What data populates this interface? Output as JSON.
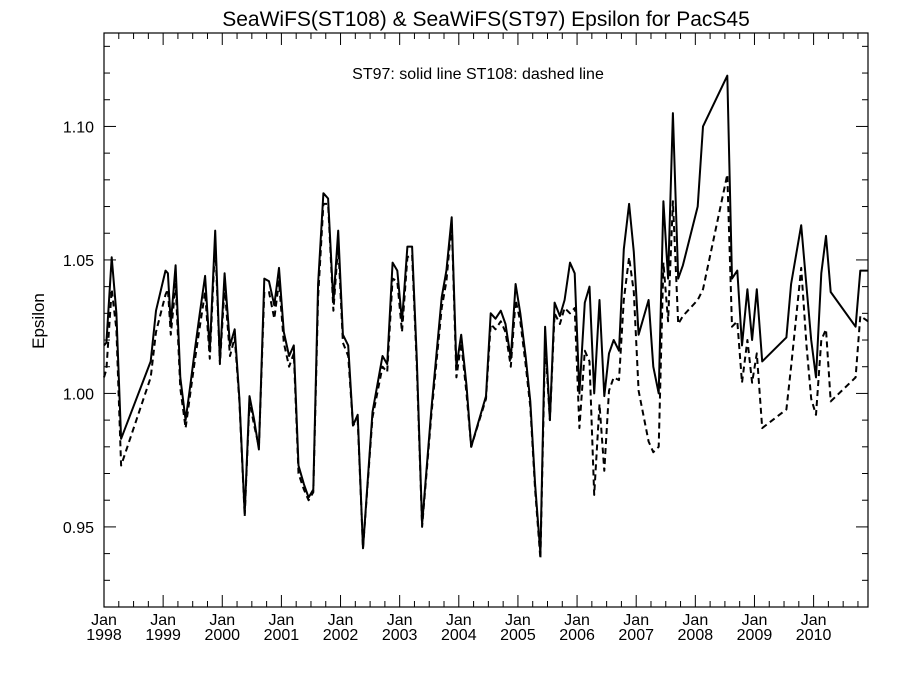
{
  "chart_data": {
    "type": "line",
    "title": "SeaWiFS(ST108) & SeaWiFS(ST97)  Epsilon for PacS45",
    "annotation": "ST97: solid line   ST108: dashed line",
    "xlabel": "",
    "ylabel": "Epsilon",
    "xlim": [
      1998.0,
      2010.92
    ],
    "ylim": [
      0.92,
      1.135
    ],
    "yticks": [
      {
        "value": 0.95,
        "label": "0.95"
      },
      {
        "value": 1.0,
        "label": "1.00"
      },
      {
        "value": 1.05,
        "label": "1.05"
      },
      {
        "value": 1.1,
        "label": "1.10"
      }
    ],
    "xticks": [
      {
        "value": 1998,
        "month": "Jan",
        "year": "1998"
      },
      {
        "value": 1999,
        "month": "Jan",
        "year": "1999"
      },
      {
        "value": 2000,
        "month": "Jan",
        "year": "2000"
      },
      {
        "value": 2001,
        "month": "Jan",
        "year": "2001"
      },
      {
        "value": 2002,
        "month": "Jan",
        "year": "2002"
      },
      {
        "value": 2003,
        "month": "Jan",
        "year": "2003"
      },
      {
        "value": 2004,
        "month": "Jan",
        "year": "2004"
      },
      {
        "value": 2005,
        "month": "Jan",
        "year": "2005"
      },
      {
        "value": 2006,
        "month": "Jan",
        "year": "2006"
      },
      {
        "value": 2007,
        "month": "Jan",
        "year": "2007"
      },
      {
        "value": 2008,
        "month": "Jan",
        "year": "2008"
      },
      {
        "value": 2009,
        "month": "Jan",
        "year": "2009"
      },
      {
        "value": 2010,
        "month": "Jan",
        "year": "2010"
      }
    ],
    "series": [
      {
        "name": "ST97",
        "style": "solid",
        "color": "#000000",
        "points": [
          [
            1998.0,
            1.018
          ],
          [
            1998.04,
            1.019
          ],
          [
            1998.13,
            1.051
          ],
          [
            1998.21,
            1.03
          ],
          [
            1998.29,
            0.983
          ],
          [
            1998.79,
            1.012
          ],
          [
            1998.88,
            1.031
          ],
          [
            1999.04,
            1.046
          ],
          [
            1999.08,
            1.045
          ],
          [
            1999.13,
            1.026
          ],
          [
            1999.21,
            1.048
          ],
          [
            1999.29,
            1.006
          ],
          [
            1999.38,
            0.99
          ],
          [
            1999.46,
            1.003
          ],
          [
            1999.54,
            1.017
          ],
          [
            1999.62,
            1.03
          ],
          [
            1999.71,
            1.044
          ],
          [
            1999.79,
            1.016
          ],
          [
            1999.88,
            1.061
          ],
          [
            1999.96,
            1.012
          ],
          [
            2000.04,
            1.045
          ],
          [
            2000.13,
            1.018
          ],
          [
            2000.21,
            1.024
          ],
          [
            2000.29,
            0.998
          ],
          [
            2000.38,
            0.955
          ],
          [
            2000.46,
            0.999
          ],
          [
            2000.54,
            0.99
          ],
          [
            2000.62,
            0.979
          ],
          [
            2000.71,
            1.043
          ],
          [
            2000.79,
            1.042
          ],
          [
            2000.88,
            1.033
          ],
          [
            2000.96,
            1.047
          ],
          [
            2001.04,
            1.023
          ],
          [
            2001.13,
            1.014
          ],
          [
            2001.21,
            1.018
          ],
          [
            2001.29,
            0.973
          ],
          [
            2001.38,
            0.966
          ],
          [
            2001.46,
            0.961
          ],
          [
            2001.54,
            0.964
          ],
          [
            2001.62,
            1.041
          ],
          [
            2001.71,
            1.075
          ],
          [
            2001.79,
            1.073
          ],
          [
            2001.88,
            1.034
          ],
          [
            2001.96,
            1.061
          ],
          [
            2002.04,
            1.022
          ],
          [
            2002.13,
            1.018
          ],
          [
            2002.21,
            0.988
          ],
          [
            2002.29,
            0.992
          ],
          [
            2002.38,
            0.942
          ],
          [
            2002.54,
            0.993
          ],
          [
            2002.71,
            1.014
          ],
          [
            2002.79,
            1.011
          ],
          [
            2002.88,
            1.049
          ],
          [
            2002.96,
            1.046
          ],
          [
            2003.04,
            1.027
          ],
          [
            2003.13,
            1.055
          ],
          [
            2003.21,
            1.055
          ],
          [
            2003.29,
            1.013
          ],
          [
            2003.38,
            0.951
          ],
          [
            2003.54,
            0.995
          ],
          [
            2003.71,
            1.036
          ],
          [
            2003.79,
            1.046
          ],
          [
            2003.88,
            1.066
          ],
          [
            2003.96,
            1.01
          ],
          [
            2004.04,
            1.022
          ],
          [
            2004.13,
            1.003
          ],
          [
            2004.21,
            0.98
          ],
          [
            2004.46,
            0.999
          ],
          [
            2004.54,
            1.03
          ],
          [
            2004.62,
            1.028
          ],
          [
            2004.71,
            1.031
          ],
          [
            2004.79,
            1.026
          ],
          [
            2004.88,
            1.013
          ],
          [
            2004.96,
            1.041
          ],
          [
            2005.04,
            1.03
          ],
          [
            2005.13,
            1.014
          ],
          [
            2005.21,
            0.997
          ],
          [
            2005.29,
            0.966
          ],
          [
            2005.38,
            0.94
          ],
          [
            2005.46,
            1.025
          ],
          [
            2005.54,
            0.99
          ],
          [
            2005.62,
            1.034
          ],
          [
            2005.71,
            1.029
          ],
          [
            2005.79,
            1.035
          ],
          [
            2005.88,
            1.049
          ],
          [
            2005.96,
            1.045
          ],
          [
            2006.04,
            1.0
          ],
          [
            2006.13,
            1.034
          ],
          [
            2006.21,
            1.04
          ],
          [
            2006.29,
            1.0
          ],
          [
            2006.38,
            1.035
          ],
          [
            2006.46,
            0.999
          ],
          [
            2006.54,
            1.015
          ],
          [
            2006.62,
            1.02
          ],
          [
            2006.71,
            1.016
          ],
          [
            2006.79,
            1.054
          ],
          [
            2006.88,
            1.071
          ],
          [
            2006.96,
            1.053
          ],
          [
            2007.04,
            1.022
          ],
          [
            2007.21,
            1.035
          ],
          [
            2007.29,
            1.01
          ],
          [
            2007.38,
            1.0
          ],
          [
            2007.46,
            1.072
          ],
          [
            2007.54,
            1.043
          ],
          [
            2007.62,
            1.105
          ],
          [
            2007.71,
            1.043
          ],
          [
            2007.79,
            1.048
          ],
          [
            2008.04,
            1.07
          ],
          [
            2008.13,
            1.1
          ],
          [
            2008.54,
            1.119
          ],
          [
            2008.62,
            1.043
          ],
          [
            2008.71,
            1.046
          ],
          [
            2008.79,
            1.018
          ],
          [
            2008.88,
            1.039
          ],
          [
            2008.96,
            1.02
          ],
          [
            2009.04,
            1.039
          ],
          [
            2009.13,
            1.012
          ],
          [
            2009.54,
            1.021
          ],
          [
            2009.62,
            1.041
          ],
          [
            2009.79,
            1.063
          ],
          [
            2009.88,
            1.04
          ],
          [
            2009.96,
            1.02
          ],
          [
            2010.04,
            1.006
          ],
          [
            2010.13,
            1.045
          ],
          [
            2010.21,
            1.059
          ],
          [
            2010.29,
            1.038
          ],
          [
            2010.71,
            1.025
          ],
          [
            2010.79,
            1.046
          ],
          [
            2010.92,
            1.046
          ]
        ]
      },
      {
        "name": "ST108",
        "style": "dashed",
        "color": "#000000",
        "points": [
          [
            1998.0,
            1.006
          ],
          [
            1998.04,
            1.009
          ],
          [
            1998.13,
            1.039
          ],
          [
            1998.21,
            1.024
          ],
          [
            1998.29,
            0.973
          ],
          [
            1998.79,
            1.006
          ],
          [
            1998.88,
            1.023
          ],
          [
            1999.04,
            1.037
          ],
          [
            1999.08,
            1.039
          ],
          [
            1999.13,
            1.022
          ],
          [
            1999.21,
            1.041
          ],
          [
            1999.29,
            1.002
          ],
          [
            1999.38,
            0.987
          ],
          [
            1999.46,
            1.0
          ],
          [
            1999.54,
            1.013
          ],
          [
            1999.62,
            1.025
          ],
          [
            1999.71,
            1.038
          ],
          [
            1999.79,
            1.013
          ],
          [
            1999.88,
            1.057
          ],
          [
            1999.96,
            1.011
          ],
          [
            2000.04,
            1.04
          ],
          [
            2000.13,
            1.014
          ],
          [
            2000.21,
            1.021
          ],
          [
            2000.29,
            0.997
          ],
          [
            2000.38,
            0.954
          ],
          [
            2000.46,
            0.997
          ],
          [
            2000.54,
            0.988
          ],
          [
            2000.62,
            0.98
          ],
          [
            2000.71,
            1.038
          ],
          [
            2000.79,
            1.038
          ],
          [
            2000.88,
            1.028
          ],
          [
            2000.96,
            1.042
          ],
          [
            2001.04,
            1.019
          ],
          [
            2001.13,
            1.01
          ],
          [
            2001.21,
            1.015
          ],
          [
            2001.29,
            0.97
          ],
          [
            2001.38,
            0.964
          ],
          [
            2001.46,
            0.96
          ],
          [
            2001.54,
            0.963
          ],
          [
            2001.62,
            1.036
          ],
          [
            2001.71,
            1.071
          ],
          [
            2001.79,
            1.071
          ],
          [
            2001.88,
            1.031
          ],
          [
            2001.96,
            1.056
          ],
          [
            2002.04,
            1.019
          ],
          [
            2002.13,
            1.014
          ],
          [
            2002.21,
            0.988
          ],
          [
            2002.29,
            0.99
          ],
          [
            2002.38,
            0.942
          ],
          [
            2002.54,
            0.991
          ],
          [
            2002.71,
            1.01
          ],
          [
            2002.79,
            1.008
          ],
          [
            2002.88,
            1.043
          ],
          [
            2002.96,
            1.042
          ],
          [
            2003.04,
            1.023
          ],
          [
            2003.13,
            1.051
          ],
          [
            2003.21,
            1.052
          ],
          [
            2003.29,
            1.01
          ],
          [
            2003.38,
            0.95
          ],
          [
            2003.54,
            0.993
          ],
          [
            2003.71,
            1.032
          ],
          [
            2003.79,
            1.042
          ],
          [
            2003.88,
            1.064
          ],
          [
            2003.96,
            1.006
          ],
          [
            2004.04,
            1.019
          ],
          [
            2004.13,
            1.0
          ],
          [
            2004.21,
            0.98
          ],
          [
            2004.46,
            0.998
          ],
          [
            2004.54,
            1.026
          ],
          [
            2004.62,
            1.024
          ],
          [
            2004.71,
            1.027
          ],
          [
            2004.79,
            1.023
          ],
          [
            2004.88,
            1.01
          ],
          [
            2004.96,
            1.035
          ],
          [
            2005.04,
            1.027
          ],
          [
            2005.13,
            1.011
          ],
          [
            2005.21,
            0.995
          ],
          [
            2005.29,
            0.964
          ],
          [
            2005.38,
            0.938
          ],
          [
            2005.46,
            1.019
          ],
          [
            2005.54,
            0.99
          ],
          [
            2005.62,
            1.03
          ],
          [
            2005.71,
            1.026
          ],
          [
            2005.79,
            1.032
          ],
          [
            2005.88,
            1.03
          ],
          [
            2005.96,
            1.032
          ],
          [
            2006.04,
            0.987
          ],
          [
            2006.13,
            1.016
          ],
          [
            2006.21,
            1.012
          ],
          [
            2006.29,
            0.962
          ],
          [
            2006.38,
            0.996
          ],
          [
            2006.46,
            0.971
          ],
          [
            2006.54,
            1.001
          ],
          [
            2006.62,
            1.006
          ],
          [
            2006.71,
            1.005
          ],
          [
            2006.79,
            1.035
          ],
          [
            2006.88,
            1.051
          ],
          [
            2006.96,
            1.038
          ],
          [
            2007.04,
            1.001
          ],
          [
            2007.21,
            0.982
          ],
          [
            2007.29,
            0.978
          ],
          [
            2007.38,
            0.98
          ],
          [
            2007.46,
            1.049
          ],
          [
            2007.54,
            1.027
          ],
          [
            2007.62,
            1.072
          ],
          [
            2007.71,
            1.026
          ],
          [
            2007.79,
            1.029
          ],
          [
            2008.04,
            1.035
          ],
          [
            2008.13,
            1.039
          ],
          [
            2008.54,
            1.082
          ],
          [
            2008.62,
            1.025
          ],
          [
            2008.71,
            1.027
          ],
          [
            2008.79,
            1.004
          ],
          [
            2008.88,
            1.02
          ],
          [
            2008.96,
            1.004
          ],
          [
            2009.04,
            1.015
          ],
          [
            2009.13,
            0.987
          ],
          [
            2009.54,
            0.994
          ],
          [
            2009.62,
            1.01
          ],
          [
            2009.79,
            1.047
          ],
          [
            2009.88,
            1.018
          ],
          [
            2009.96,
            0.998
          ],
          [
            2010.04,
            0.992
          ],
          [
            2010.13,
            1.02
          ],
          [
            2010.21,
            1.024
          ],
          [
            2010.29,
            0.997
          ],
          [
            2010.71,
            1.006
          ],
          [
            2010.79,
            1.029
          ],
          [
            2010.92,
            1.027
          ]
        ]
      }
    ]
  }
}
